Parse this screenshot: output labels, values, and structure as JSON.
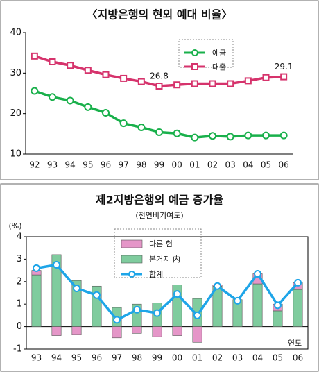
{
  "chart_data": [
    {
      "type": "line",
      "title": "〈지방은행의 현외 예대 비율〉",
      "categories": [
        "92",
        "93",
        "94",
        "95",
        "96",
        "97",
        "98",
        "99",
        "00",
        "01",
        "02",
        "03",
        "04",
        "05",
        "06"
      ],
      "series": [
        {
          "name": "예금",
          "color": "#19b04b",
          "values": [
            25.6,
            24.1,
            23.2,
            21.6,
            20.2,
            17.6,
            16.6,
            15.4,
            15.1,
            14.1,
            14.5,
            14.3,
            14.6,
            14.6,
            14.6
          ]
        },
        {
          "name": "대출",
          "color": "#d6336c",
          "values": [
            34.2,
            32.8,
            31.9,
            30.7,
            29.6,
            28.7,
            27.9,
            26.8,
            27.1,
            27.4,
            27.4,
            27.4,
            28.1,
            28.9,
            29.1
          ]
        }
      ],
      "labeled_points": [
        [
          1,
          7
        ],
        [
          1,
          14
        ]
      ],
      "ylim": [
        10,
        40
      ],
      "yticks": [
        10,
        20,
        30,
        40
      ]
    },
    {
      "type": "bar",
      "title": "제2지방은행의 예금 증가율",
      "subtitle": "(전연비기여도)",
      "y_label": "(%)",
      "x_label": "연도",
      "categories": [
        "93",
        "94",
        "95",
        "96",
        "97",
        "98",
        "99",
        "00",
        "01",
        "02",
        "03",
        "04",
        "05",
        "06"
      ],
      "series": [
        {
          "name": "다른 현",
          "color": "#e596c8",
          "values": [
            0.2,
            -0.4,
            -0.35,
            0,
            -0.5,
            -0.3,
            -0.45,
            -0.4,
            -0.7,
            0.05,
            0,
            0.45,
            0.3,
            0.3
          ]
        },
        {
          "name": "본거지 内",
          "color": "#7fcc9e",
          "values": [
            2.3,
            3.2,
            2.05,
            1.8,
            0.85,
            1.0,
            1.05,
            1.85,
            1.25,
            1.8,
            1.2,
            1.9,
            0.7,
            1.65
          ]
        },
        {
          "name": "합계",
          "color": "#1ea5e8",
          "type": "line",
          "values": [
            2.6,
            2.75,
            1.7,
            1.4,
            0.3,
            0.75,
            0.6,
            1.45,
            0.5,
            1.8,
            1.15,
            2.35,
            0.95,
            1.95
          ]
        }
      ],
      "ylim": [
        -1,
        4
      ],
      "yticks": [
        -1,
        0,
        1,
        2,
        3,
        4
      ]
    }
  ]
}
